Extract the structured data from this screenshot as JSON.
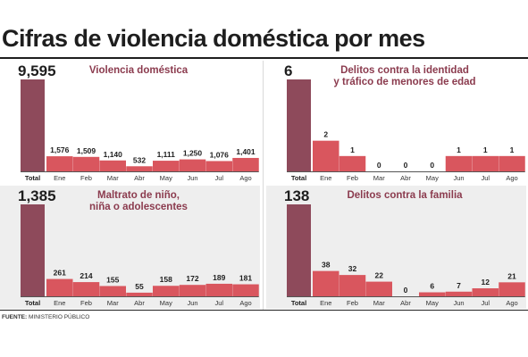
{
  "title": "Cifras de violencia doméstica por mes",
  "source": {
    "label": "FUENTE:",
    "text": "MINISTERIO PÚBLICO"
  },
  "colors": {
    "total": "#8e4a5b",
    "month": "#d9565e",
    "title_text": "#8b3b4e",
    "panel_shade": "#eeeeee"
  },
  "chart_data": [
    {
      "type": "bar",
      "title": [
        "Violencia doméstica"
      ],
      "categories": [
        "Total",
        "Ene",
        "Feb",
        "Mar",
        "Abr",
        "May",
        "Jun",
        "Jul",
        "Ago"
      ],
      "values": [
        9595,
        1576,
        1509,
        1140,
        532,
        1111,
        1250,
        1076,
        1401
      ],
      "value_labels": [
        "9,595",
        "1,576",
        "1,509",
        "1,140",
        "532",
        "1,111",
        "1,250",
        "1,076",
        "1,401"
      ]
    },
    {
      "type": "bar",
      "title": [
        "Delitos contra la identidad",
        "y tráfico de menores de edad"
      ],
      "categories": [
        "Total",
        "Ene",
        "Feb",
        "Mar",
        "Abr",
        "May",
        "Jun",
        "Jul",
        "Ago"
      ],
      "values": [
        6,
        2,
        1,
        0,
        0,
        0,
        1,
        1,
        1
      ],
      "value_labels": [
        "6",
        "2",
        "1",
        "0",
        "0",
        "0",
        "1",
        "1",
        "1"
      ]
    },
    {
      "type": "bar",
      "title": [
        "Maltrato de niño,",
        "niña o adolescentes"
      ],
      "categories": [
        "Total",
        "Ene",
        "Feb",
        "Mar",
        "Abr",
        "May",
        "Jun",
        "Jul",
        "Ago"
      ],
      "values": [
        1385,
        261,
        214,
        155,
        55,
        158,
        172,
        189,
        181
      ],
      "value_labels": [
        "1,385",
        "261",
        "214",
        "155",
        "55",
        "158",
        "172",
        "189",
        "181"
      ]
    },
    {
      "type": "bar",
      "title": [
        "Delitos contra la familia"
      ],
      "categories": [
        "Total",
        "Ene",
        "Feb",
        "Mar",
        "Abr",
        "May",
        "Jun",
        "Jul",
        "Ago"
      ],
      "values": [
        138,
        38,
        32,
        22,
        0,
        6,
        7,
        12,
        21
      ],
      "value_labels": [
        "138",
        "38",
        "32",
        "22",
        "0",
        "6",
        "7",
        "12",
        "21"
      ]
    }
  ]
}
